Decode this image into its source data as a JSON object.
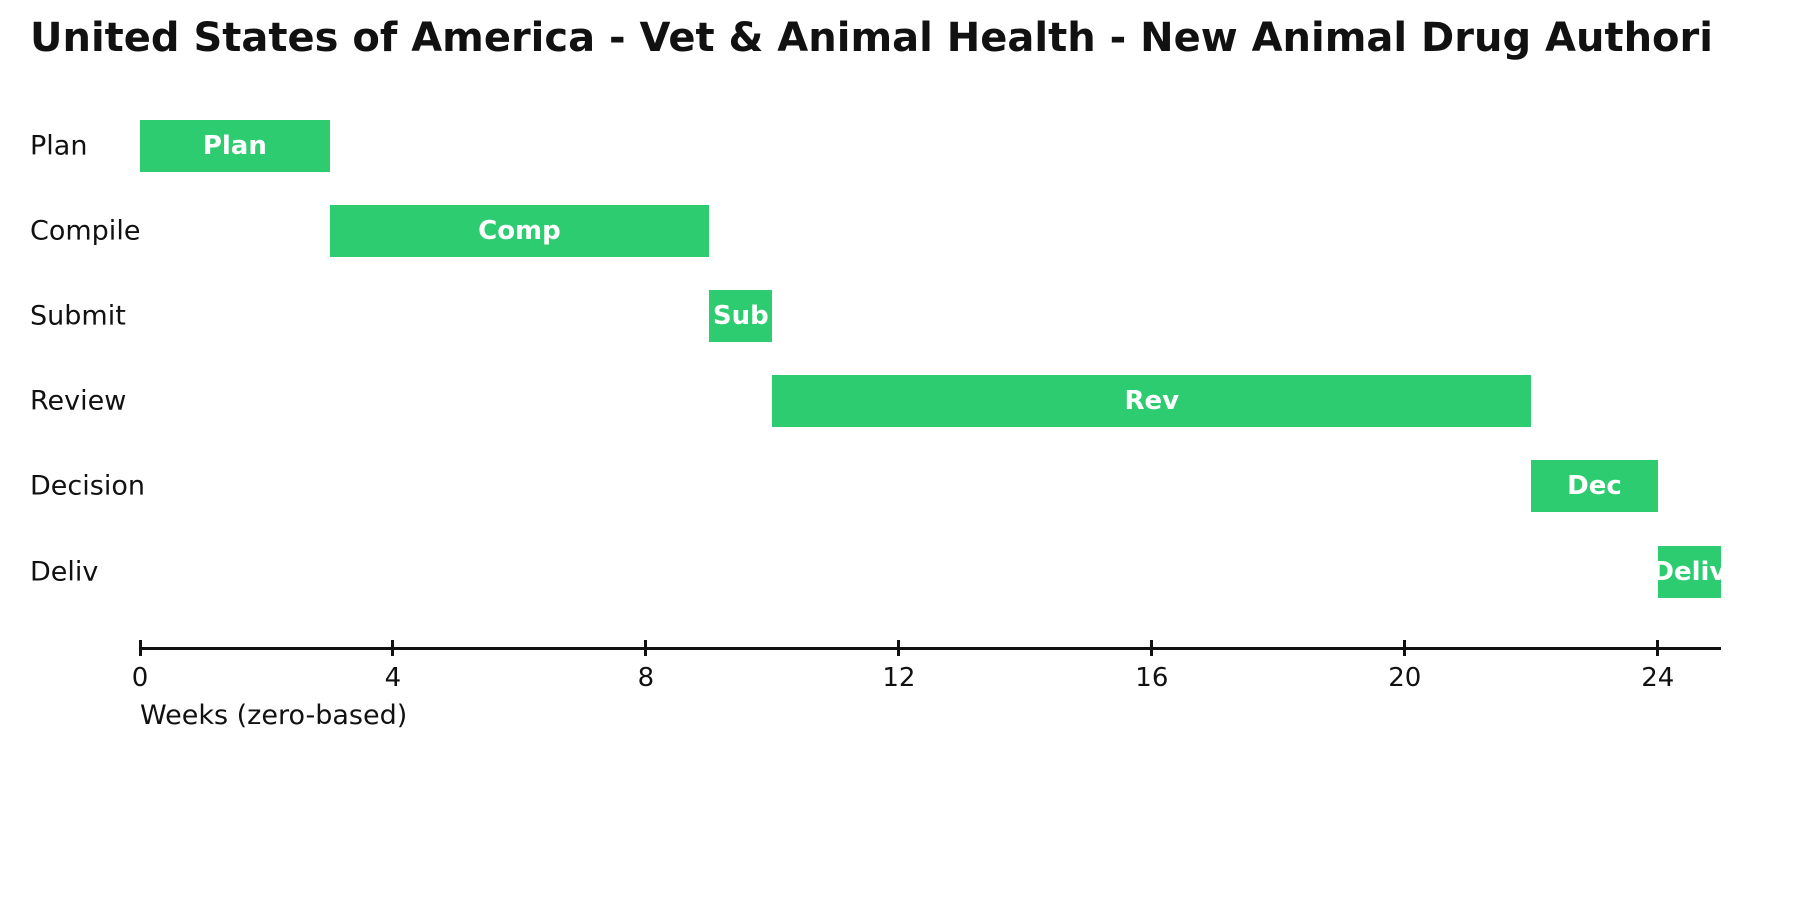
{
  "title": "United States of America - Vet & Animal Health - New Animal Drug Authori",
  "colors": {
    "bar": "#2ecc71",
    "bar_label_text": "#ffffff",
    "text": "#111111",
    "axis": "#111111",
    "background": "#ffffff"
  },
  "chart_data": {
    "type": "bar",
    "subtype": "gantt-horizontal",
    "title": "United States of America - Vet & Animal Health - New Animal Drug Authori",
    "xlabel": "Weeks (zero-based)",
    "ylabel": "",
    "xlim": [
      0,
      25
    ],
    "xticks": [
      0,
      4,
      8,
      12,
      16,
      20,
      24
    ],
    "grid": false,
    "legend": false,
    "categories": [
      "Plan",
      "Compile",
      "Submit",
      "Review",
      "Decision",
      "Deliv"
    ],
    "tasks": [
      {
        "name": "Plan",
        "bar_label": "Plan",
        "start_week": 0,
        "end_week": 3,
        "duration_weeks": 3
      },
      {
        "name": "Compile",
        "bar_label": "Comp",
        "start_week": 3,
        "end_week": 9,
        "duration_weeks": 6
      },
      {
        "name": "Submit",
        "bar_label": "Sub",
        "start_week": 9,
        "end_week": 10,
        "duration_weeks": 1
      },
      {
        "name": "Review",
        "bar_label": "Rev",
        "start_week": 10,
        "end_week": 22,
        "duration_weeks": 12
      },
      {
        "name": "Decision",
        "bar_label": "Dec",
        "start_week": 22,
        "end_week": 24,
        "duration_weeks": 2
      },
      {
        "name": "Deliv",
        "bar_label": "Deliv",
        "start_week": 24,
        "end_week": 25,
        "duration_weeks": 1
      }
    ]
  }
}
